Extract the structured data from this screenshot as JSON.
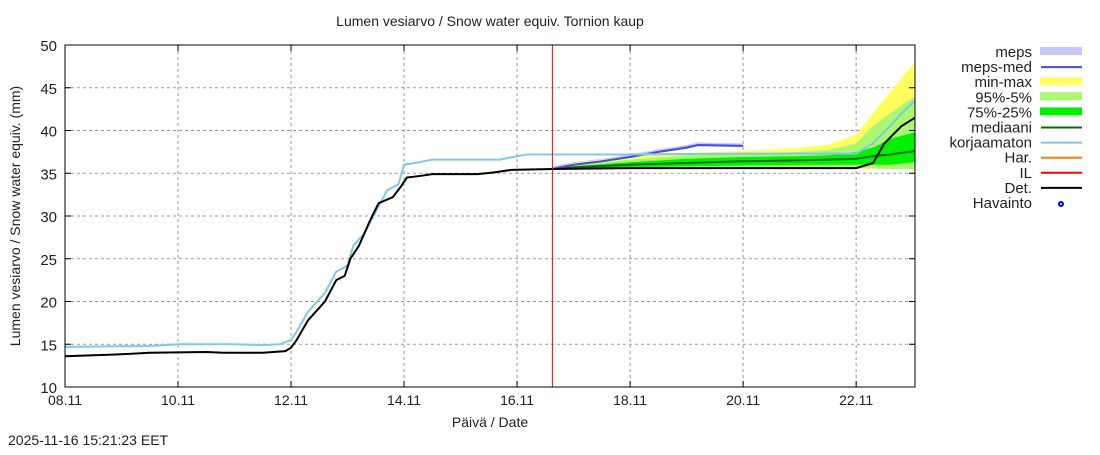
{
  "timestamp": "2025-11-16 15:21:23 EET",
  "chart_data": {
    "type": "line",
    "title": "Lumen vesiarvo / Snow water equiv.  Tornion kaup",
    "xlabel": "Päivä / Date",
    "ylabel": "Lumen vesiarvo / Snow water equiv. (mm)",
    "ylim": [
      10,
      50
    ],
    "xlim": [
      "08.11 00:00",
      "23.11 01:00"
    ],
    "grid": true,
    "legend_position": "right",
    "xticks": [
      "08.11",
      "10.11",
      "12.11",
      "14.11",
      "16.11",
      "18.11",
      "20.11",
      "22.11"
    ],
    "yticks": [
      10,
      15,
      20,
      25,
      30,
      35,
      40,
      45,
      50
    ],
    "current_time": "16.11 15:00",
    "legend": [
      {
        "label": "meps",
        "kind": "band",
        "color": "#c8c8f8"
      },
      {
        "label": "meps-med",
        "kind": "line",
        "color": "#4848e8"
      },
      {
        "label": "min-max",
        "kind": "band",
        "color": "#ffff60"
      },
      {
        "label": "95%-5%",
        "kind": "band",
        "color": "#a8f870"
      },
      {
        "label": "75%-25%",
        "kind": "band",
        "color": "#00f000"
      },
      {
        "label": "mediaani",
        "kind": "line",
        "color": "#007000"
      },
      {
        "label": "korjaamaton",
        "kind": "line",
        "color": "#80c8e8"
      },
      {
        "label": "Har.",
        "kind": "line",
        "color": "#ff8000"
      },
      {
        "label": "IL",
        "kind": "line",
        "color": "#ff0000"
      },
      {
        "label": "Det.",
        "kind": "line",
        "color": "#000000"
      },
      {
        "label": "Havainto",
        "kind": "point",
        "color": "#0000ff"
      }
    ],
    "series": {
      "korjaamaton": {
        "x": [
          "08.11 00:00",
          "09.11 12:00",
          "10.11 00:00",
          "11.11 00:00",
          "11.11 12:00",
          "11.11 19:12",
          "12.11 00:00",
          "12.11 02:24",
          "12.11 07:12",
          "12.11 14:24",
          "12.11 19:12",
          "13.11 00:00",
          "13.11 02:24",
          "13.11 07:12",
          "13.11 12:00",
          "13.11 16:48",
          "13.11 21:36",
          "14.11 00:00",
          "14.11 04:48",
          "14.11 12:00",
          "15.11 00:00",
          "15.11 16:48",
          "16.11 00:00",
          "16.11 04:48",
          "18.11 00:00",
          "20.11 00:00",
          "22.11 00:00",
          "22.11 07:12",
          "22.11 14:24",
          "22.11 19:12",
          "23.11 01:00"
        ],
        "y": [
          14.7,
          14.8,
          15.0,
          15.0,
          14.9,
          15.0,
          15.5,
          16.5,
          18.8,
          21.0,
          23.5,
          24.2,
          26.5,
          28.0,
          30.5,
          33.0,
          33.7,
          36.0,
          36.2,
          36.6,
          36.6,
          36.6,
          37.0,
          37.2,
          37.2,
          37.3,
          37.3,
          38.5,
          40.5,
          42.0,
          43.5
        ]
      },
      "det": {
        "x": [
          "08.11 00:00",
          "08.11 21:36",
          "09.11 12:00",
          "10.11 12:00",
          "10.11 19:12",
          "11.11 12:00",
          "11.11 21:36",
          "12.11 00:00",
          "12.11 02:24",
          "12.11 07:12",
          "12.11 14:24",
          "12.11 19:12",
          "12.11 22:48",
          "13.11 01:12",
          "13.11 04:48",
          "13.11 09:36",
          "13.11 13:12",
          "13.11 19:12",
          "13.11 22:48",
          "14.11 01:12",
          "14.11 07:12",
          "14.11 12:00",
          "15.11 07:12",
          "15.11 14:24",
          "15.11 21:36",
          "16.11 15:00",
          "18.11 00:00",
          "20.11 00:00",
          "22.11 00:00",
          "22.11 07:12",
          "22.11 12:00",
          "22.11 19:12",
          "23.11 01:00"
        ],
        "y": [
          13.6,
          13.8,
          14.0,
          14.1,
          14.0,
          14.0,
          14.2,
          14.6,
          15.5,
          17.8,
          20.0,
          22.5,
          23.0,
          25.0,
          26.5,
          29.5,
          31.5,
          32.2,
          33.5,
          34.5,
          34.7,
          34.9,
          34.9,
          35.1,
          35.4,
          35.5,
          35.6,
          35.6,
          35.6,
          36.2,
          38.5,
          40.5,
          41.5
        ]
      },
      "meps_med": {
        "x": [
          "16.11 15:00",
          "17.11 00:00",
          "17.11 12:00",
          "18.11 00:00",
          "18.11 12:00",
          "19.11 00:00",
          "19.11 04:48",
          "20.11 00:00"
        ],
        "y": [
          35.5,
          36.0,
          36.4,
          36.9,
          37.5,
          38.0,
          38.3,
          38.2
        ]
      },
      "bands_x": [
        "16.11 15:00",
        "17.11 00:00",
        "18.11 00:00",
        "19.11 00:00",
        "20.11 00:00",
        "21.11 00:00",
        "21.11 12:00",
        "22.11 00:00",
        "22.11 07:12",
        "22.11 14:24",
        "23.11 01:00"
      ],
      "min_max": {
        "lo": [
          35.5,
          35.5,
          35.5,
          35.5,
          35.5,
          35.5,
          35.5,
          35.5,
          35.5,
          35.5,
          35.5
        ],
        "hi": [
          35.5,
          36.2,
          37.0,
          37.4,
          37.6,
          38.0,
          38.3,
          39.5,
          42.0,
          44.5,
          48.0
        ]
      },
      "p95_5": {
        "lo": [
          35.5,
          35.5,
          35.6,
          35.6,
          35.6,
          35.6,
          35.6,
          35.6,
          35.6,
          35.5,
          35.5
        ],
        "hi": [
          35.5,
          35.9,
          36.6,
          37.1,
          37.3,
          37.5,
          37.7,
          38.5,
          40.5,
          42.0,
          44.0
        ]
      },
      "p75_25": {
        "lo": [
          35.5,
          35.6,
          35.7,
          35.8,
          35.9,
          36.0,
          36.0,
          36.0,
          36.0,
          36.0,
          36.3
        ],
        "hi": [
          35.5,
          35.8,
          36.3,
          36.7,
          36.9,
          37.0,
          37.1,
          37.5,
          38.0,
          39.0,
          39.8
        ]
      },
      "mediaani": {
        "y": [
          35.5,
          35.7,
          36.0,
          36.2,
          36.4,
          36.5,
          36.6,
          36.7,
          37.0,
          37.2,
          37.6
        ]
      }
    }
  }
}
